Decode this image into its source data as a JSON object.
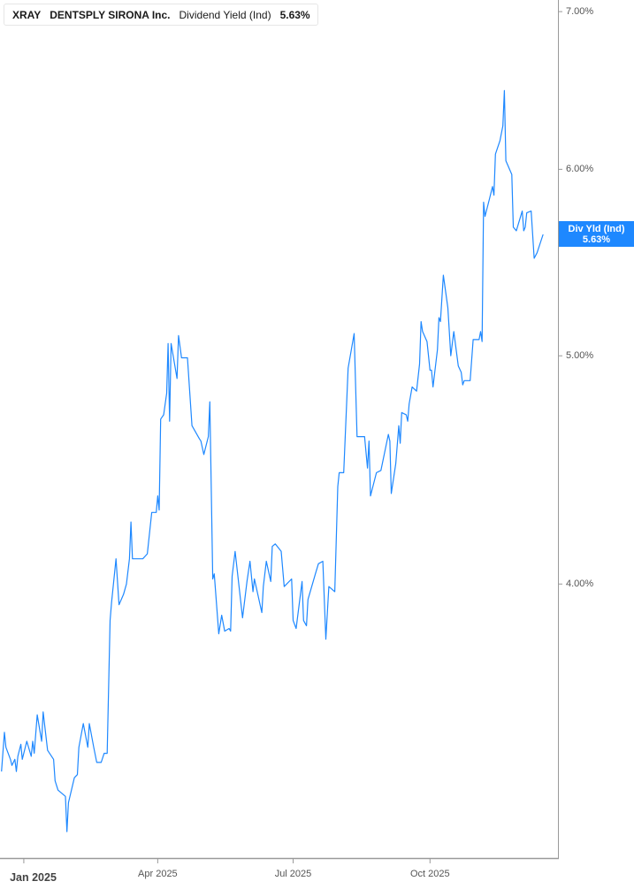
{
  "header": {
    "ticker": "XRAY",
    "company": "DENTSPLY SIRONA Inc.",
    "metric": "Dividend Yield (Ind)",
    "value": "5.63%"
  },
  "last_label": {
    "title": "Div Yld (Ind)",
    "value": "5.63%"
  },
  "colors": {
    "line": "#1e88ff",
    "label_bg": "#1e88ff",
    "axis": "#999999"
  },
  "chart_data": {
    "type": "line",
    "title": "",
    "xlabel": "",
    "ylabel": "",
    "y_scale": "log",
    "y_axis_position": "right",
    "xlim": [
      "2024-12-16",
      "2025-12-26"
    ],
    "ylim": [
      3.06,
      7.08
    ],
    "grid": false,
    "y_ticks": [
      {
        "value": 4,
        "label": "4.00%"
      },
      {
        "value": 5,
        "label": "5.00%"
      },
      {
        "value": 6,
        "label": "6.00%"
      },
      {
        "value": 7,
        "label": "7.00%"
      }
    ],
    "x_ticks": [
      {
        "date": "2025-01-01",
        "label": "Jan 2025"
      },
      {
        "date": "2025-04-01",
        "label": "Apr 2025"
      },
      {
        "date": "2025-07-01",
        "label": "Jul 2025"
      },
      {
        "date": "2025-10-01",
        "label": "Oct 2025"
      }
    ],
    "series": [
      {
        "points": [
          [
            "2024-12-17",
            3.33
          ],
          [
            "2024-12-19",
            3.46
          ],
          [
            "2024-12-20",
            3.41
          ],
          [
            "2024-12-23",
            3.37
          ],
          [
            "2024-12-24",
            3.35
          ],
          [
            "2024-12-26",
            3.37
          ],
          [
            "2024-12-27",
            3.33
          ],
          [
            "2024-12-28",
            3.38
          ],
          [
            "2024-12-30",
            3.42
          ],
          [
            "2024-12-31",
            3.37
          ],
          [
            "2025-01-03",
            3.43
          ],
          [
            "2025-01-06",
            3.38
          ],
          [
            "2025-01-07",
            3.43
          ],
          [
            "2025-01-08",
            3.39
          ],
          [
            "2025-01-10",
            3.52
          ],
          [
            "2025-01-13",
            3.43
          ],
          [
            "2025-01-14",
            3.53
          ],
          [
            "2025-01-17",
            3.4
          ],
          [
            "2025-01-21",
            3.37
          ],
          [
            "2025-01-22",
            3.3
          ],
          [
            "2025-01-24",
            3.27
          ],
          [
            "2025-01-29",
            3.25
          ],
          [
            "2025-01-30",
            3.14
          ],
          [
            "2025-01-31",
            3.23
          ],
          [
            "2025-02-04",
            3.31
          ],
          [
            "2025-02-06",
            3.32
          ],
          [
            "2025-02-07",
            3.41
          ],
          [
            "2025-02-10",
            3.49
          ],
          [
            "2025-02-13",
            3.41
          ],
          [
            "2025-02-14",
            3.49
          ],
          [
            "2025-02-17",
            3.41
          ],
          [
            "2025-02-19",
            3.36
          ],
          [
            "2025-02-22",
            3.36
          ],
          [
            "2025-02-24",
            3.39
          ],
          [
            "2025-02-26",
            3.39
          ],
          [
            "2025-02-28",
            3.86
          ],
          [
            "2025-03-01",
            3.93
          ],
          [
            "2025-03-04",
            4.1
          ],
          [
            "2025-03-06",
            3.92
          ],
          [
            "2025-03-09",
            3.96
          ],
          [
            "2025-03-11",
            4.0
          ],
          [
            "2025-03-13",
            4.1
          ],
          [
            "2025-03-14",
            4.25
          ],
          [
            "2025-03-15",
            4.1
          ],
          [
            "2025-03-17",
            4.1
          ],
          [
            "2025-03-22",
            4.1
          ],
          [
            "2025-03-25",
            4.12
          ],
          [
            "2025-03-28",
            4.29
          ],
          [
            "2025-03-31",
            4.29
          ],
          [
            "2025-04-01",
            4.36
          ],
          [
            "2025-04-02",
            4.3
          ],
          [
            "2025-04-03",
            4.7
          ],
          [
            "2025-04-05",
            4.72
          ],
          [
            "2025-04-07",
            4.82
          ],
          [
            "2025-04-08",
            5.06
          ],
          [
            "2025-04-09",
            4.69
          ],
          [
            "2025-04-10",
            5.06
          ],
          [
            "2025-04-14",
            4.89
          ],
          [
            "2025-04-15",
            5.1
          ],
          [
            "2025-04-17",
            4.99
          ],
          [
            "2025-04-21",
            4.99
          ],
          [
            "2025-04-24",
            4.67
          ],
          [
            "2025-04-29",
            4.61
          ],
          [
            "2025-04-30",
            4.6
          ],
          [
            "2025-05-02",
            4.54
          ],
          [
            "2025-05-05",
            4.62
          ],
          [
            "2025-05-06",
            4.78
          ],
          [
            "2025-05-08",
            4.02
          ],
          [
            "2025-05-09",
            4.04
          ],
          [
            "2025-05-12",
            3.81
          ],
          [
            "2025-05-14",
            3.88
          ],
          [
            "2025-05-16",
            3.82
          ],
          [
            "2025-05-19",
            3.83
          ],
          [
            "2025-05-20",
            3.82
          ],
          [
            "2025-05-21",
            4.03
          ],
          [
            "2025-05-23",
            4.13
          ],
          [
            "2025-05-28",
            3.87
          ],
          [
            "2025-05-31",
            4.01
          ],
          [
            "2025-06-02",
            4.09
          ],
          [
            "2025-06-04",
            3.97
          ],
          [
            "2025-06-05",
            4.02
          ],
          [
            "2025-06-10",
            3.89
          ],
          [
            "2025-06-11",
            3.99
          ],
          [
            "2025-06-13",
            4.09
          ],
          [
            "2025-06-16",
            4.01
          ],
          [
            "2025-06-17",
            4.15
          ],
          [
            "2025-06-19",
            4.16
          ],
          [
            "2025-06-23",
            4.13
          ],
          [
            "2025-06-25",
            3.99
          ],
          [
            "2025-06-30",
            4.02
          ],
          [
            "2025-07-01",
            3.86
          ],
          [
            "2025-07-03",
            3.83
          ],
          [
            "2025-07-07",
            4.01
          ],
          [
            "2025-07-08",
            3.86
          ],
          [
            "2025-07-10",
            3.84
          ],
          [
            "2025-07-11",
            3.94
          ],
          [
            "2025-07-16",
            4.04
          ],
          [
            "2025-07-18",
            4.08
          ],
          [
            "2025-07-21",
            4.09
          ],
          [
            "2025-07-23",
            3.79
          ],
          [
            "2025-07-25",
            3.99
          ],
          [
            "2025-07-29",
            3.97
          ],
          [
            "2025-07-31",
            4.4
          ],
          [
            "2025-08-01",
            4.46
          ],
          [
            "2025-08-04",
            4.46
          ],
          [
            "2025-08-07",
            4.94
          ],
          [
            "2025-08-11",
            5.11
          ],
          [
            "2025-08-13",
            4.62
          ],
          [
            "2025-08-15",
            4.62
          ],
          [
            "2025-08-18",
            4.62
          ],
          [
            "2025-08-20",
            4.48
          ],
          [
            "2025-08-21",
            4.6
          ],
          [
            "2025-08-22",
            4.36
          ],
          [
            "2025-08-26",
            4.46
          ],
          [
            "2025-08-29",
            4.47
          ],
          [
            "2025-09-03",
            4.63
          ],
          [
            "2025-09-04",
            4.6
          ],
          [
            "2025-09-05",
            4.37
          ],
          [
            "2025-09-08",
            4.5
          ],
          [
            "2025-09-10",
            4.67
          ],
          [
            "2025-09-11",
            4.59
          ],
          [
            "2025-09-12",
            4.73
          ],
          [
            "2025-09-15",
            4.72
          ],
          [
            "2025-09-16",
            4.69
          ],
          [
            "2025-09-17",
            4.77
          ],
          [
            "2025-09-19",
            4.85
          ],
          [
            "2025-09-22",
            4.83
          ],
          [
            "2025-09-24",
            4.96
          ],
          [
            "2025-09-25",
            5.17
          ],
          [
            "2025-09-26",
            5.12
          ],
          [
            "2025-09-29",
            5.07
          ],
          [
            "2025-10-01",
            4.93
          ],
          [
            "2025-10-02",
            4.93
          ],
          [
            "2025-10-03",
            4.85
          ],
          [
            "2025-10-06",
            5.03
          ],
          [
            "2025-10-07",
            5.19
          ],
          [
            "2025-10-08",
            5.17
          ],
          [
            "2025-10-10",
            5.41
          ],
          [
            "2025-10-13",
            5.24
          ],
          [
            "2025-10-15",
            5.0
          ],
          [
            "2025-10-17",
            5.12
          ],
          [
            "2025-10-20",
            4.95
          ],
          [
            "2025-10-22",
            4.92
          ],
          [
            "2025-10-23",
            4.86
          ],
          [
            "2025-10-24",
            4.88
          ],
          [
            "2025-10-28",
            4.88
          ],
          [
            "2025-10-30",
            5.08
          ],
          [
            "2025-11-03",
            5.08
          ],
          [
            "2025-11-04",
            5.12
          ],
          [
            "2025-11-05",
            5.07
          ],
          [
            "2025-11-06",
            5.81
          ],
          [
            "2025-11-07",
            5.73
          ],
          [
            "2025-11-10",
            5.83
          ],
          [
            "2025-11-12",
            5.9
          ],
          [
            "2025-11-13",
            5.85
          ],
          [
            "2025-11-14",
            6.09
          ],
          [
            "2025-11-17",
            6.17
          ],
          [
            "2025-11-19",
            6.26
          ],
          [
            "2025-11-20",
            6.48
          ],
          [
            "2025-11-21",
            6.05
          ],
          [
            "2025-11-25",
            5.97
          ],
          [
            "2025-11-26",
            5.67
          ],
          [
            "2025-11-28",
            5.65
          ],
          [
            "2025-12-02",
            5.76
          ],
          [
            "2025-12-03",
            5.65
          ],
          [
            "2025-12-04",
            5.67
          ],
          [
            "2025-12-05",
            5.75
          ],
          [
            "2025-12-08",
            5.76
          ],
          [
            "2025-12-10",
            5.5
          ],
          [
            "2025-12-12",
            5.53
          ],
          [
            "2025-12-16",
            5.63
          ]
        ]
      }
    ]
  }
}
